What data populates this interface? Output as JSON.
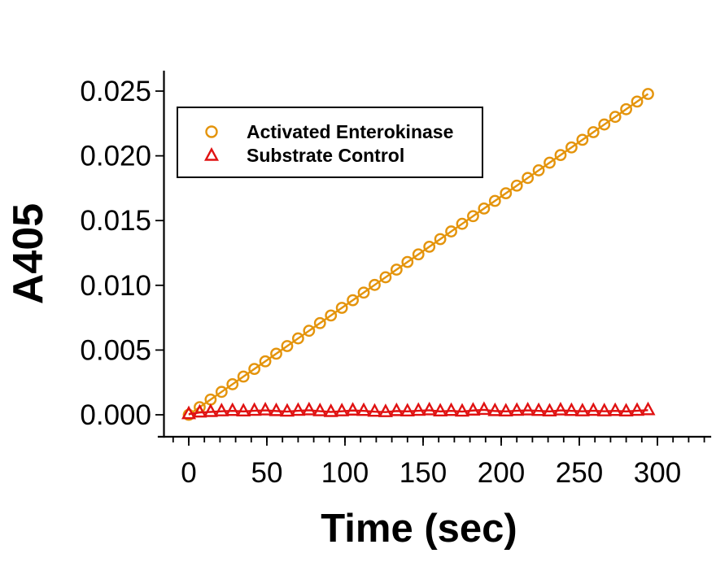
{
  "figure": {
    "background": "#ffffff",
    "text_color": "#000000"
  },
  "chart_data": {
    "type": "scatter",
    "title": "",
    "xlabel": "Time (sec)",
    "ylabel": "A405",
    "xlim": [
      -16,
      334
    ],
    "ylim": [
      -0.0017,
      0.0265
    ],
    "grid": false,
    "x_major_ticks": [
      0,
      50,
      100,
      150,
      200,
      250,
      300
    ],
    "x_tick_labels": [
      "0",
      "50",
      "100",
      "150",
      "200",
      "250",
      "300"
    ],
    "x_minor_ticks": {
      "from": -10,
      "to": 330,
      "step": 10
    },
    "y_major_ticks": [
      0.0,
      0.005,
      0.01,
      0.015,
      0.02,
      0.025
    ],
    "y_tick_labels": [
      "0.000",
      "0.005",
      "0.010",
      "0.015",
      "0.020",
      "0.025"
    ],
    "legend": {
      "position": "top-left-inside",
      "border": true,
      "entries": [
        {
          "label": "Activated Enterokinase",
          "marker": "circle-icon",
          "color": "#E4940C"
        },
        {
          "label": "Substrate Control",
          "marker": "triangle-icon",
          "color": "#E01212"
        }
      ]
    },
    "series": [
      {
        "name": "Activated Enterokinase",
        "marker": "circle",
        "color": "#E4940C",
        "x": [
          0,
          7,
          14,
          21,
          28,
          35,
          42,
          49,
          56,
          63,
          70,
          77,
          84,
          91,
          98,
          105,
          112,
          119,
          126,
          133,
          140,
          147,
          154,
          161,
          168,
          175,
          182,
          189,
          196,
          203,
          210,
          217,
          224,
          231,
          238,
          245,
          252,
          259,
          266,
          273,
          280,
          287,
          294
        ],
        "y": [
          0.0,
          0.00059,
          0.00118,
          0.00177,
          0.00236,
          0.00295,
          0.00354,
          0.00413,
          0.00472,
          0.00531,
          0.0059,
          0.00649,
          0.00708,
          0.00767,
          0.00826,
          0.00885,
          0.00944,
          0.01003,
          0.01062,
          0.01121,
          0.0118,
          0.01239,
          0.01298,
          0.01357,
          0.01416,
          0.01475,
          0.01534,
          0.01593,
          0.01652,
          0.01711,
          0.0177,
          0.01829,
          0.01888,
          0.01947,
          0.02006,
          0.02065,
          0.02124,
          0.02183,
          0.02242,
          0.02301,
          0.0236,
          0.02419,
          0.02478
        ]
      },
      {
        "name": "Substrate Control",
        "marker": "triangle",
        "color": "#E01212",
        "x": [
          0,
          7,
          14,
          21,
          28,
          35,
          42,
          49,
          56,
          63,
          70,
          77,
          84,
          91,
          98,
          105,
          112,
          119,
          126,
          133,
          140,
          147,
          154,
          161,
          168,
          175,
          182,
          189,
          196,
          203,
          210,
          217,
          224,
          231,
          238,
          245,
          252,
          259,
          266,
          273,
          280,
          287,
          294
        ],
        "y": [
          5e-05,
          0.00018,
          0.00022,
          0.00027,
          0.0003,
          0.00026,
          0.00031,
          0.00034,
          0.00029,
          0.00025,
          0.00031,
          0.00035,
          0.00028,
          0.00022,
          0.00027,
          0.00033,
          0.0003,
          0.00024,
          0.00021,
          0.00029,
          0.00026,
          0.00031,
          0.00035,
          0.00026,
          0.0003,
          0.00025,
          0.00033,
          0.00038,
          0.00029,
          0.00026,
          0.00031,
          0.00034,
          0.0003,
          0.00026,
          0.00034,
          0.0003,
          0.00027,
          0.00031,
          0.00027,
          0.0003,
          0.00026,
          0.00031,
          0.00036
        ]
      }
    ]
  }
}
